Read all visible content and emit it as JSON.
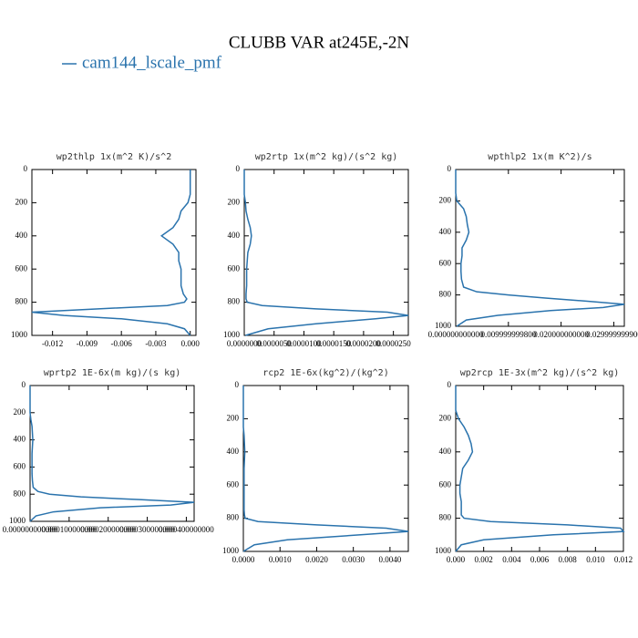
{
  "title": "CLUBB VAR at245E,-2N",
  "legend": {
    "name": "cam144_lscale_pmf",
    "color": "#2a73ad"
  },
  "chart_data": [
    {
      "type": "line",
      "title": "wp2thlp  1x(m^2 K)/s^2",
      "y": [
        0,
        50,
        100,
        150,
        200,
        250,
        300,
        350,
        400,
        450,
        500,
        550,
        600,
        650,
        700,
        750,
        780,
        800,
        820,
        840,
        860,
        880,
        900,
        930,
        960,
        1000
      ],
      "series": [
        {
          "values": [
            0,
            0,
            0,
            0,
            -0.0002,
            -0.0008,
            -0.001,
            -0.0015,
            -0.0025,
            -0.0015,
            -0.001,
            -0.001,
            -0.0008,
            -0.0008,
            -0.0008,
            -0.0006,
            -0.0003,
            -0.0005,
            -0.002,
            -0.008,
            -0.0138,
            -0.011,
            -0.006,
            -0.002,
            -0.0005,
            0
          ]
        }
      ],
      "xlim": [
        -0.0138,
        0.0005
      ],
      "xticks": [
        -0.012,
        -0.009,
        -0.006,
        -0.003,
        {
          "value": 0,
          "label": "0.000"
        }
      ],
      "ylim": [
        1000,
        0
      ],
      "yticks": [
        0,
        200,
        400,
        600,
        800,
        1000
      ]
    },
    {
      "type": "line",
      "title": "wp2rtp  1x(m^2 kg)/(s^2 kg)",
      "y": [
        0,
        50,
        100,
        150,
        200,
        250,
        300,
        350,
        400,
        450,
        500,
        550,
        600,
        650,
        700,
        750,
        780,
        800,
        820,
        840,
        860,
        880,
        900,
        930,
        960,
        1000
      ],
      "series": [
        {
          "values": [
            0,
            0,
            0,
            0,
            2e-07,
            3e-07,
            6e-07,
            1e-06,
            1.2e-06,
            1e-06,
            6e-07,
            5e-07,
            4e-07,
            4e-07,
            4e-07,
            3e-07,
            3e-07,
            5e-07,
            3e-06,
            1.2e-05,
            2.4e-05,
            2.75e-05,
            2.2e-05,
            1.2e-05,
            4e-06,
            2e-07
          ]
        }
      ],
      "xlim": [
        0,
        2.75e-05
      ],
      "xticks": [
        {
          "value": 0,
          "label": "0.0000000"
        },
        {
          "value": 5e-06,
          "label": "0.0000050"
        },
        {
          "value": 1e-05,
          "label": "0.0000100"
        },
        {
          "value": 1.5e-05,
          "label": "0.0000150"
        },
        {
          "value": 2e-05,
          "label": "0.0000200"
        },
        {
          "value": 2.5e-05,
          "label": "0.0000250"
        }
      ],
      "ylim": [
        1000,
        0
      ],
      "yticks": [
        0,
        200,
        400,
        600,
        800,
        1000
      ]
    },
    {
      "type": "line",
      "title": "wpthlp2  1x(m K^2)/s",
      "y": [
        0,
        50,
        100,
        150,
        200,
        250,
        300,
        350,
        400,
        450,
        500,
        550,
        600,
        650,
        700,
        750,
        780,
        800,
        820,
        840,
        860,
        880,
        900,
        930,
        960,
        1000
      ],
      "series": [
        {
          "values": [
            0,
            0,
            0,
            0,
            0.0002,
            0.0015,
            0.002,
            0.0022,
            0.0025,
            0.002,
            0.0012,
            0.0012,
            0.001,
            0.001,
            0.0011,
            0.0015,
            0.004,
            0.01,
            0.017,
            0.025,
            0.032,
            0.028,
            0.018,
            0.008,
            0.002,
            0.0002
          ]
        }
      ],
      "xlim": [
        0,
        0.032
      ],
      "xticks": [
        {
          "value": 0,
          "label": "0.000000000000"
        },
        {
          "value": 0.01,
          "label": "0.009999999800"
        },
        {
          "value": 0.02,
          "label": "0.020000000000"
        },
        {
          "value": 0.03,
          "label": "0.029999999900"
        }
      ],
      "ylim": [
        1000,
        0
      ],
      "yticks": [
        0,
        200,
        400,
        600,
        800,
        1000
      ]
    },
    {
      "type": "line",
      "title": "wprtp2  1E-6x(m kg)/(s kg)",
      "y": [
        0,
        50,
        100,
        150,
        200,
        250,
        300,
        350,
        400,
        450,
        500,
        550,
        600,
        650,
        700,
        750,
        780,
        800,
        820,
        840,
        860,
        880,
        900,
        930,
        960,
        1000
      ],
      "series": [
        {
          "values": [
            0,
            0,
            0,
            0,
            0,
            2e-06,
            5e-06,
            6e-06,
            7e-06,
            6e-06,
            5e-06,
            5e-06,
            5e-06,
            5e-06,
            6e-06,
            8e-06,
            2e-05,
            5e-05,
            0.00013,
            0.00028,
            0.00042,
            0.00036,
            0.00018,
            6e-05,
            1.5e-05,
            0
          ]
        }
      ],
      "xlim": [
        0,
        0.00042
      ],
      "xticks": [
        {
          "value": 0,
          "label": "0.000000000000"
        },
        {
          "value": 0.0001,
          "label": "0.000100000000"
        },
        {
          "value": 0.0002,
          "label": "0.000200000000"
        },
        {
          "value": 0.0003,
          "label": "0.000300000000"
        },
        {
          "value": 0.0004,
          "label": "0.000400000000"
        }
      ],
      "ylim": [
        1000,
        0
      ],
      "yticks": [
        0,
        200,
        400,
        600,
        800,
        1000
      ]
    },
    {
      "type": "line",
      "title": "rcp2  1E-6x(kg^2)/(kg^2)",
      "y": [
        0,
        50,
        100,
        150,
        200,
        250,
        300,
        350,
        400,
        450,
        500,
        550,
        600,
        650,
        700,
        750,
        780,
        800,
        820,
        840,
        860,
        880,
        900,
        930,
        960,
        1000
      ],
      "series": [
        {
          "values": [
            0,
            0,
            0,
            0,
            0,
            0,
            2e-05,
            3e-05,
            4e-05,
            3e-05,
            2e-05,
            2e-05,
            2e-05,
            2e-05,
            2e-05,
            2e-05,
            3e-05,
            5e-05,
            0.0004,
            0.002,
            0.0039,
            0.0045,
            0.0032,
            0.0012,
            0.0003,
            0
          ]
        }
      ],
      "xlim": [
        0,
        0.0045
      ],
      "xticks": [
        {
          "value": 0,
          "label": "0.0000"
        },
        {
          "value": 0.001,
          "label": "0.0010"
        },
        {
          "value": 0.002,
          "label": "0.0020"
        },
        {
          "value": 0.003,
          "label": "0.0030"
        },
        {
          "value": 0.004,
          "label": "0.0040"
        }
      ],
      "ylim": [
        1000,
        0
      ],
      "yticks": [
        0,
        200,
        400,
        600,
        800,
        1000
      ]
    },
    {
      "type": "line",
      "title": "wp2rcp  1E-3x(m^2 kg)/(s^2 kg)",
      "y": [
        0,
        50,
        100,
        150,
        200,
        250,
        300,
        350,
        400,
        450,
        500,
        550,
        600,
        650,
        700,
        750,
        780,
        800,
        820,
        840,
        860,
        880,
        900,
        930,
        960,
        1000
      ],
      "series": [
        {
          "values": [
            0,
            0,
            0,
            0,
            0.0002,
            0.0006,
            0.0009,
            0.0011,
            0.0012,
            0.0009,
            0.0005,
            0.0004,
            0.0003,
            0.0003,
            0.0004,
            0.0004,
            0.0004,
            0.0006,
            0.0025,
            0.008,
            0.0118,
            0.012,
            0.007,
            0.002,
            0.0004,
            0
          ]
        }
      ],
      "xlim": [
        0,
        0.012
      ],
      "xticks": [
        {
          "value": 0,
          "label": "0.000"
        },
        {
          "value": 0.002,
          "label": "0.002"
        },
        {
          "value": 0.004,
          "label": "0.004"
        },
        {
          "value": 0.006,
          "label": "0.006"
        },
        {
          "value": 0.008,
          "label": "0.008"
        },
        {
          "value": 0.01,
          "label": "0.010"
        },
        {
          "value": 0.012,
          "label": "0.012"
        }
      ],
      "ylim": [
        1000,
        0
      ],
      "yticks": [
        0,
        200,
        400,
        600,
        800,
        1000
      ]
    }
  ]
}
